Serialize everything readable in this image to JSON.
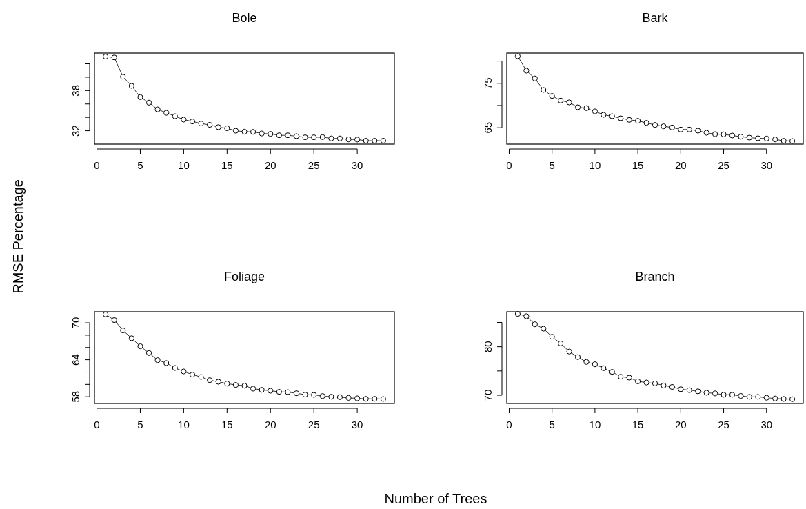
{
  "chart_data": [
    {
      "type": "line",
      "title": "Bole",
      "xlabel": "Number of Trees",
      "ylabel": "RMSE Percentage",
      "marker": "circle",
      "line_style": "solid",
      "grid": false,
      "x": [
        1,
        2,
        3,
        4,
        5,
        6,
        7,
        8,
        9,
        10,
        11,
        12,
        13,
        14,
        15,
        16,
        17,
        18,
        19,
        20,
        21,
        22,
        23,
        24,
        25,
        26,
        27,
        28,
        29,
        30,
        31,
        32,
        33
      ],
      "series": [
        {
          "color": "#000000",
          "values": [
            43.08,
            42.95,
            40.07,
            38.71,
            37.02,
            36.2,
            35.19,
            34.68,
            34.17,
            33.66,
            33.39,
            33.08,
            32.88,
            32.54,
            32.37,
            32.0,
            31.86,
            31.83,
            31.59,
            31.53,
            31.32,
            31.32,
            31.19,
            31.02,
            31.02,
            31.05,
            30.85,
            30.85,
            30.71,
            30.68,
            30.51,
            30.51,
            30.51
          ]
        }
      ],
      "xlim": [
        -0.28,
        34.28
      ],
      "xticks": [
        0,
        5,
        10,
        15,
        20,
        25,
        30
      ],
      "ylim": [
        30.0,
        43.6
      ],
      "yticks": [
        32,
        {
          "value": 34,
          "label": null
        },
        {
          "value": 36,
          "label": null
        },
        38,
        {
          "value": 40,
          "label": null
        },
        {
          "value": 42,
          "label": null
        }
      ]
    },
    {
      "type": "line",
      "title": "Bark",
      "marker": "circle",
      "line_style": "solid",
      "grid": false,
      "x": [
        1,
        2,
        3,
        4,
        5,
        6,
        7,
        8,
        9,
        10,
        11,
        12,
        13,
        14,
        15,
        16,
        17,
        18,
        19,
        20,
        21,
        22,
        23,
        24,
        25,
        26,
        27,
        28,
        29,
        30,
        31,
        32,
        33
      ],
      "series": [
        {
          "color": "#000000",
          "values": [
            81.1,
            77.85,
            76.09,
            73.5,
            72.15,
            71.11,
            70.7,
            69.61,
            69.4,
            68.68,
            67.9,
            67.59,
            67.12,
            66.76,
            66.55,
            66.09,
            65.62,
            65.31,
            65.05,
            64.59,
            64.59,
            64.33,
            63.86,
            63.55,
            63.5,
            63.24,
            62.98,
            62.77,
            62.62,
            62.56,
            62.36,
            62.05,
            62.0
          ]
        }
      ],
      "xlim": [
        -0.28,
        34.28
      ],
      "xticks": [
        0,
        5,
        10,
        15,
        20,
        25,
        30
      ],
      "ylim": [
        61.3,
        81.8
      ],
      "yticks": [
        65,
        {
          "value": 70,
          "label": null
        },
        75,
        {
          "value": 80,
          "label": null
        }
      ]
    },
    {
      "type": "line",
      "title": "Foliage",
      "marker": "circle",
      "line_style": "solid",
      "grid": false,
      "x": [
        1,
        2,
        3,
        4,
        5,
        6,
        7,
        8,
        9,
        10,
        11,
        12,
        13,
        14,
        15,
        16,
        17,
        18,
        19,
        20,
        21,
        22,
        23,
        24,
        25,
        26,
        27,
        28,
        29,
        30,
        31,
        32,
        33
      ],
      "series": [
        {
          "color": "#000000",
          "values": [
            71.38,
            70.45,
            68.77,
            67.5,
            66.19,
            65.1,
            63.94,
            63.46,
            62.67,
            62.11,
            61.59,
            61.21,
            60.69,
            60.43,
            60.13,
            59.91,
            59.79,
            59.31,
            59.12,
            58.97,
            58.79,
            58.75,
            58.56,
            58.34,
            58.3,
            58.11,
            58.0,
            57.93,
            57.81,
            57.74,
            57.66,
            57.66,
            57.63
          ]
        }
      ],
      "xlim": [
        -0.28,
        34.28
      ],
      "xticks": [
        0,
        5,
        10,
        15,
        20,
        25,
        30
      ],
      "ylim": [
        56.9,
        71.8
      ],
      "yticks": [
        58,
        {
          "value": 60,
          "label": null
        },
        {
          "value": 62,
          "label": null
        },
        64,
        {
          "value": 66,
          "label": null
        },
        {
          "value": 68,
          "label": null
        },
        70
      ]
    },
    {
      "type": "line",
      "title": "Branch",
      "marker": "circle",
      "line_style": "solid",
      "grid": false,
      "x": [
        1,
        2,
        3,
        4,
        5,
        6,
        7,
        8,
        9,
        10,
        11,
        12,
        13,
        14,
        15,
        16,
        17,
        18,
        19,
        20,
        21,
        22,
        23,
        24,
        25,
        26,
        27,
        28,
        29,
        30,
        31,
        32,
        33
      ],
      "series": [
        {
          "color": "#000000",
          "values": [
            86.76,
            86.29,
            84.62,
            83.71,
            82.05,
            80.67,
            79.0,
            77.86,
            76.86,
            76.38,
            75.57,
            74.81,
            73.81,
            73.62,
            72.86,
            72.62,
            72.43,
            72.0,
            71.71,
            71.24,
            71.05,
            70.81,
            70.52,
            70.38,
            70.1,
            70.1,
            69.86,
            69.67,
            69.67,
            69.48,
            69.33,
            69.24,
            69.19
          ]
        }
      ],
      "xlim": [
        -0.28,
        34.28
      ],
      "xticks": [
        0,
        5,
        10,
        15,
        20,
        25,
        30
      ],
      "ylim": [
        68.3,
        87.2
      ],
      "yticks": [
        70,
        {
          "value": 75,
          "label": null
        },
        80,
        {
          "value": 85,
          "label": null
        }
      ]
    }
  ]
}
